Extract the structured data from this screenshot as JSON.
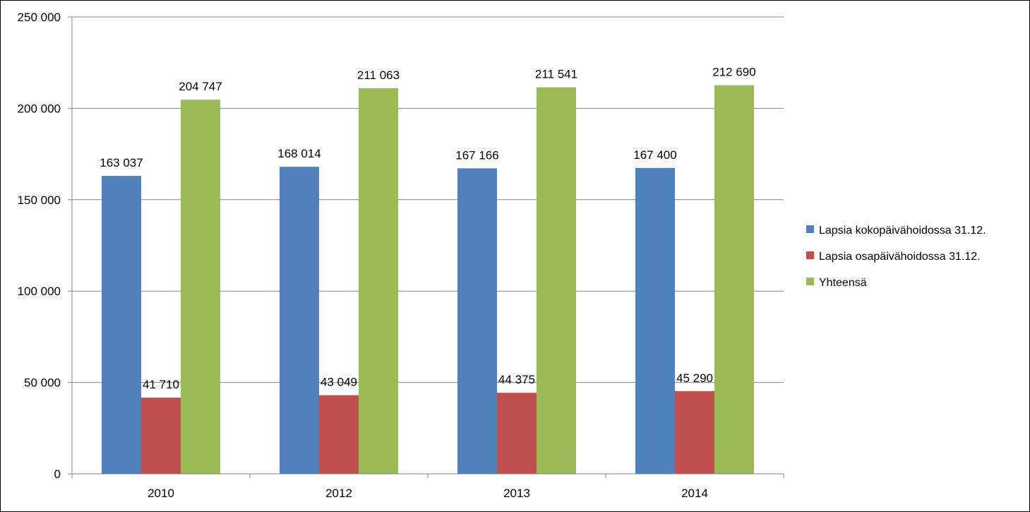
{
  "chart_data": {
    "type": "bar",
    "categories": [
      "2010",
      "2012",
      "2013",
      "2014"
    ],
    "series": [
      {
        "name": "Lapsia kokopäivähoidossa 31.12.",
        "color": "#4F81BD",
        "values": [
          163037,
          168014,
          167166,
          167400
        ],
        "labels": [
          "163 037",
          "168 014",
          "167 166",
          "167 400"
        ]
      },
      {
        "name": "Lapsia osapäivähoidossa 31.12.",
        "color": "#C0504D",
        "values": [
          41710,
          43049,
          44375,
          45290
        ],
        "labels": [
          "41 710",
          "43 049",
          "44 375",
          "45 290"
        ]
      },
      {
        "name": "Yhteensä",
        "color": "#9BBB59",
        "values": [
          204747,
          211063,
          211541,
          212690
        ],
        "labels": [
          "204 747",
          "211 063",
          "211 541",
          "212 690"
        ]
      }
    ],
    "ylim": [
      0,
      250000
    ],
    "yticks": [
      0,
      50000,
      100000,
      150000,
      200000,
      250000
    ],
    "ytick_labels": [
      "0",
      "50 000",
      "100 000",
      "150 000",
      "200 000",
      "250 000"
    ],
    "grid": "horizontal",
    "legend_position": "right"
  }
}
